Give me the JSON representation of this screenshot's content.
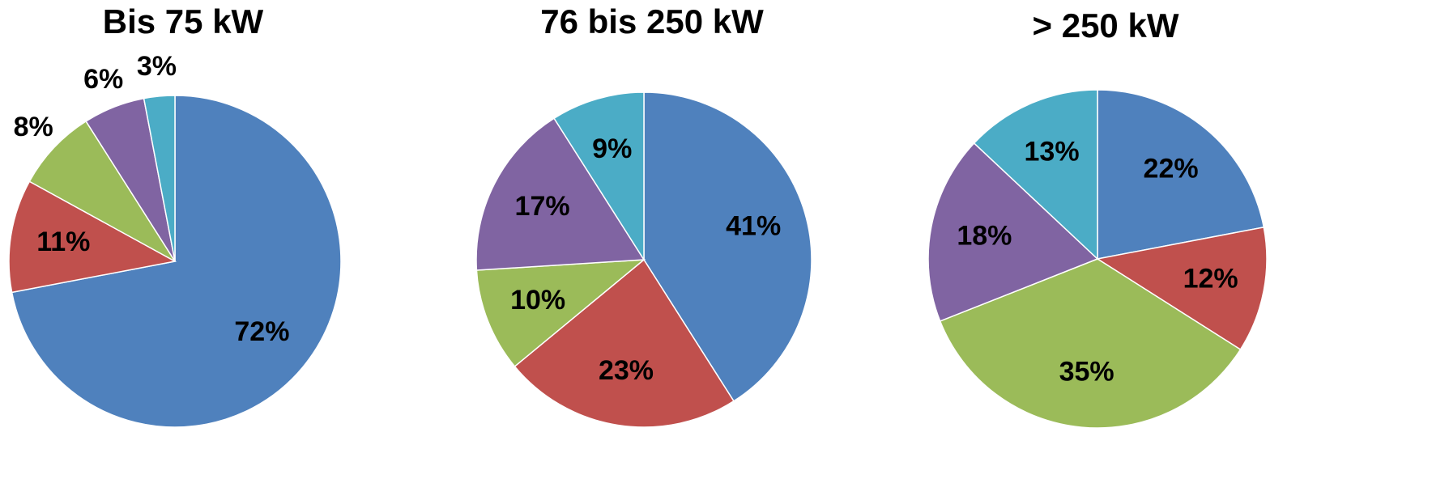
{
  "chart_data": [
    {
      "type": "pie",
      "title": "Bis 75 kW",
      "values": [
        72,
        11,
        8,
        6,
        3
      ],
      "value_labels": [
        "72%",
        "11%",
        "8%",
        "6%",
        "3%"
      ],
      "colors": [
        "#4f81bd",
        "#c0504d",
        "#9bbb59",
        "#8064a2",
        "#4bacc6"
      ]
    },
    {
      "type": "pie",
      "title": "76 bis 250 kW",
      "values": [
        41,
        23,
        10,
        17,
        9
      ],
      "value_labels": [
        "41%",
        "23%",
        "10%",
        "17%",
        "9%"
      ],
      "colors": [
        "#4f81bd",
        "#c0504d",
        "#9bbb59",
        "#8064a2",
        "#4bacc6"
      ]
    },
    {
      "type": "pie",
      "title": "> 250 kW",
      "values": [
        22,
        12,
        35,
        18,
        13
      ],
      "value_labels": [
        "22%",
        "12%",
        "35%",
        "18%",
        "13%"
      ],
      "colors": [
        "#4f81bd",
        "#c0504d",
        "#9bbb59",
        "#8064a2",
        "#4bacc6"
      ]
    }
  ]
}
